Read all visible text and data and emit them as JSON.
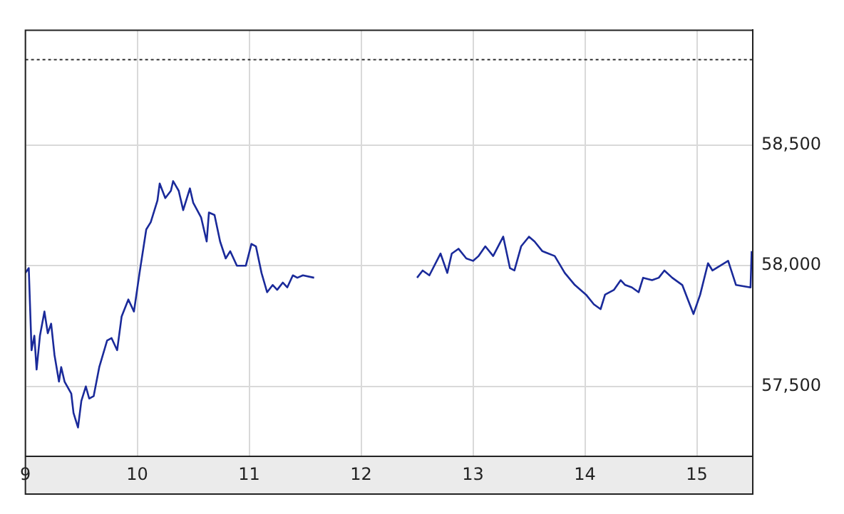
{
  "chart_data": {
    "type": "line",
    "x": [
      9.0,
      9.03,
      9.055,
      9.08,
      9.1,
      9.13,
      9.17,
      9.2,
      9.23,
      9.26,
      9.3,
      9.32,
      9.35,
      9.41,
      9.43,
      9.47,
      9.5,
      9.54,
      9.57,
      9.61,
      9.66,
      9.73,
      9.77,
      9.82,
      9.86,
      9.92,
      9.97,
      10.02,
      10.08,
      10.12,
      10.18,
      10.2,
      10.25,
      10.3,
      10.32,
      10.37,
      10.41,
      10.47,
      10.5,
      10.57,
      10.62,
      10.64,
      10.69,
      10.74,
      10.79,
      10.83,
      10.89,
      10.97,
      11.02,
      11.06,
      11.11,
      11.16,
      11.21,
      11.25,
      11.3,
      11.34,
      11.39,
      11.43,
      11.48,
      11.58,
      12.0,
      12.5,
      12.55,
      12.61,
      12.71,
      12.77,
      12.81,
      12.87,
      12.94,
      13.0,
      13.05,
      13.11,
      13.18,
      13.27,
      13.33,
      13.37,
      13.43,
      13.5,
      13.55,
      13.62,
      13.73,
      13.82,
      13.91,
      14.01,
      14.08,
      14.14,
      14.18,
      14.26,
      14.32,
      14.36,
      14.42,
      14.48,
      14.52,
      14.6,
      14.66,
      14.71,
      14.78,
      14.87,
      14.92,
      14.97,
      15.03,
      15.1,
      15.14,
      15.21,
      15.28,
      15.35,
      15.48,
      15.49
    ],
    "series": [
      {
        "color": "#1a2a9a",
        "values": [
          57970,
          57990,
          57650,
          57710,
          57570,
          57710,
          57810,
          57720,
          57760,
          57630,
          57520,
          57580,
          57520,
          57470,
          57390,
          57330,
          57440,
          57500,
          57450,
          57460,
          57580,
          57690,
          57700,
          57650,
          57790,
          57860,
          57810,
          57970,
          58150,
          58180,
          58270,
          58340,
          58280,
          58310,
          58350,
          58310,
          58230,
          58320,
          58260,
          58200,
          58100,
          58220,
          58210,
          58100,
          58030,
          58060,
          58000,
          58000,
          58090,
          58080,
          57970,
          57890,
          57920,
          57900,
          57930,
          57910,
          57960,
          57950,
          57960,
          57950,
          null,
          57950,
          57980,
          57960,
          58050,
          57970,
          58050,
          58070,
          58030,
          58020,
          58040,
          58080,
          58040,
          58120,
          57990,
          57980,
          58080,
          58120,
          58100,
          58060,
          58040,
          57970,
          57920,
          57880,
          57840,
          57820,
          57880,
          57900,
          57940,
          57920,
          57910,
          57890,
          57950,
          57940,
          57950,
          57980,
          57950,
          57920,
          57860,
          57800,
          57880,
          58010,
          57980,
          58000,
          58020,
          57920,
          57910,
          58060
        ]
      }
    ],
    "xlim": [
      9,
      15.5
    ],
    "xticks": [
      9,
      10,
      11,
      12,
      13,
      14,
      15
    ],
    "ylim": [
      57210,
      58975
    ],
    "yticks": [
      {
        "value": 57500,
        "label": "57,500"
      },
      {
        "value": 58000,
        "label": "58,000"
      },
      {
        "value": 58500,
        "label": "58,500"
      }
    ],
    "grid": true,
    "legend": false,
    "marker": "none",
    "line_style": "solid",
    "ref_lines": [
      {
        "axis": "y",
        "value": 58853,
        "color": "#333333",
        "line_style": "dotted"
      }
    ]
  }
}
